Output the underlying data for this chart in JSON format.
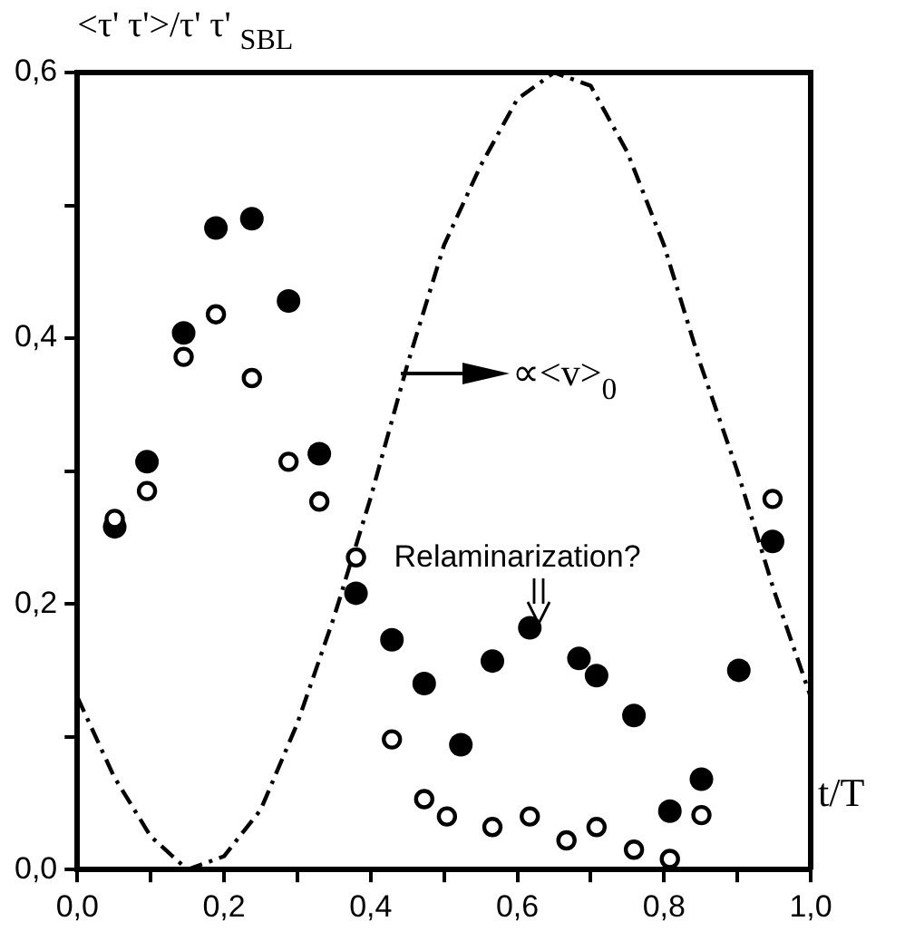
{
  "chart_data": {
    "type": "scatter",
    "ylabel": "<τ' τ'>/τ' τ' $_{SBL}$",
    "xlabel": "t/T",
    "xlim": [
      0,
      1
    ],
    "ylim": [
      0,
      0.6
    ],
    "xticks": [
      {
        "value": 0,
        "label": "0,0"
      },
      {
        "value": 0.1,
        "label": null
      },
      {
        "value": 0.2,
        "label": "0,2"
      },
      {
        "value": 0.3,
        "label": null
      },
      {
        "value": 0.4,
        "label": "0,4"
      },
      {
        "value": 0.5,
        "label": null
      },
      {
        "value": 0.6,
        "label": "0,6"
      },
      {
        "value": 0.7,
        "label": null
      },
      {
        "value": 0.8,
        "label": "0,8"
      },
      {
        "value": 0.9,
        "label": null
      },
      {
        "value": 1,
        "label": "1,0"
      }
    ],
    "yticks": [
      {
        "value": 0,
        "label": "0,0"
      },
      {
        "value": 0.1,
        "label": null
      },
      {
        "value": 0.2,
        "label": "0,2"
      },
      {
        "value": 0.3,
        "label": null
      },
      {
        "value": 0.4,
        "label": "0,4"
      },
      {
        "value": 0.5,
        "label": null
      },
      {
        "value": 0.6,
        "label": "0,6"
      }
    ],
    "grid": false,
    "legend": false,
    "marker": "circle",
    "series": [
      {
        "color": "#000000",
        "x": [
          0.051,
          0.095,
          0.145,
          0.189,
          0.238,
          0.288,
          0.33,
          0.38,
          0.429,
          0.473,
          0.523,
          0.566,
          0.617,
          0.684,
          0.708,
          0.759,
          0.808,
          0.851,
          0.902,
          0.948
        ],
        "values": [
          0.258,
          0.307,
          0.404,
          0.483,
          0.49,
          0.428,
          0.313,
          0.208,
          0.173,
          0.14,
          0.094,
          0.157,
          0.182,
          0.159,
          0.146,
          0.116,
          0.044,
          0.068,
          0.15,
          0.247
        ]
      },
      {
        "color": "#000000",
        "x": [
          0.051,
          0.095,
          0.145,
          0.189,
          0.238,
          0.288,
          0.33,
          0.38,
          0.429,
          0.473,
          0.504,
          0.566,
          0.617,
          0.667,
          0.708,
          0.759,
          0.808,
          0.851,
          0.902,
          0.948
        ],
        "values": [
          0.264,
          0.285,
          0.386,
          0.418,
          0.37,
          0.307,
          0.277,
          0.235,
          0.098,
          0.053,
          0.04,
          0.032,
          0.04,
          0.022,
          0.032,
          0.015,
          0.008,
          0.041,
          null,
          0.279
        ]
      },
      {
        "type": "line",
        "color": "#000000",
        "line_style": "dashed",
        "marker": "none",
        "x": [
          0,
          0.05,
          0.1,
          0.15,
          0.2,
          0.25,
          0.3,
          0.35,
          0.4,
          0.45,
          0.5,
          0.55,
          0.6,
          0.65,
          0.7,
          0.75,
          0.8,
          0.85,
          0.9,
          0.95,
          1
        ],
        "values": [
          0.13,
          0.07,
          0.025,
          0,
          0.01,
          0.045,
          0.11,
          0.19,
          0.28,
          0.38,
          0.47,
          0.53,
          0.58,
          0.6,
          0.59,
          0.54,
          0.47,
          0.38,
          0.3,
          0.21,
          0.13
        ]
      }
    ],
    "annotations": [
      {
        "text": "∝<v>$_{0}$",
        "x": 0.44,
        "y": 0.374
      },
      "Relaminarization?"
    ]
  }
}
